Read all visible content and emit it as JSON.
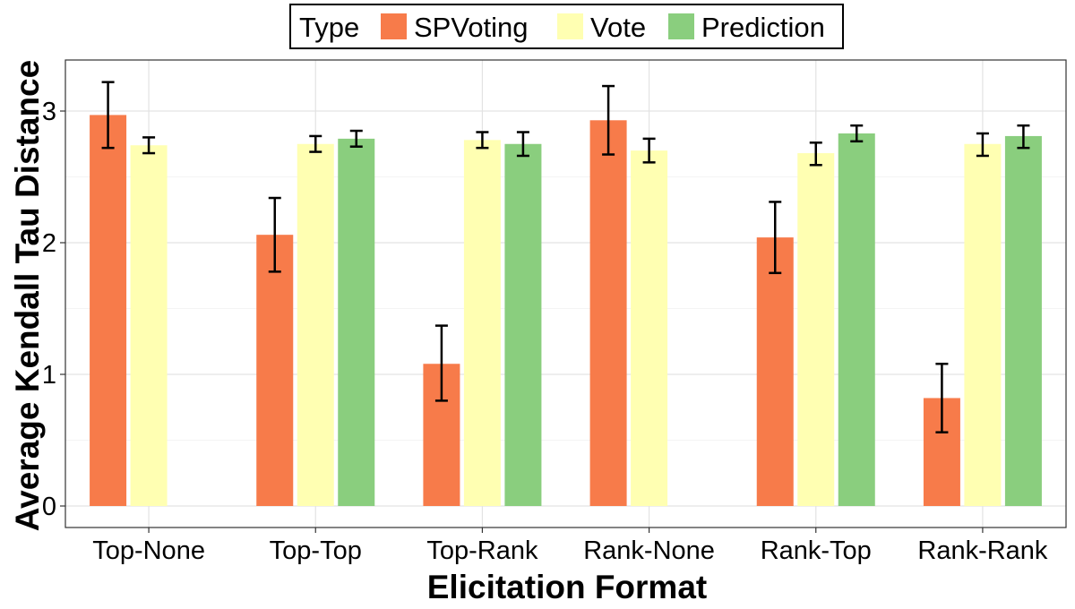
{
  "chart_data": {
    "type": "bar",
    "xlabel": "Elicitation Format",
    "ylabel": "Average Kendall Tau Distance",
    "categories": [
      "Top-None",
      "Top-Top",
      "Top-Rank",
      "Rank-None",
      "Rank-Top",
      "Rank-Rank"
    ],
    "ylim": [
      -0.15,
      3.4
    ],
    "yticks": [
      0,
      1,
      2,
      3
    ],
    "grid": true,
    "legend": {
      "title": "Type",
      "placement": "top-center"
    },
    "series": [
      {
        "name": "SPVoting",
        "color": "#F77B4A",
        "values": [
          2.97,
          2.06,
          1.08,
          2.93,
          2.04,
          0.82
        ],
        "error_low": [
          2.72,
          1.78,
          0.8,
          2.67,
          1.77,
          0.56
        ],
        "error_high": [
          3.22,
          2.34,
          1.37,
          3.19,
          2.31,
          1.08
        ]
      },
      {
        "name": "Vote",
        "color": "#FFFFB2",
        "values": [
          2.74,
          2.75,
          2.78,
          2.7,
          2.68,
          2.75
        ],
        "error_low": [
          2.68,
          2.69,
          2.72,
          2.61,
          2.59,
          2.66
        ],
        "error_high": [
          2.8,
          2.81,
          2.84,
          2.79,
          2.76,
          2.83
        ]
      },
      {
        "name": "Prediction",
        "color": "#8ACE7E",
        "values": [
          null,
          2.79,
          2.75,
          null,
          2.83,
          2.81
        ],
        "error_low": [
          null,
          2.73,
          2.66,
          null,
          2.77,
          2.72
        ],
        "error_high": [
          null,
          2.85,
          2.84,
          null,
          2.89,
          2.89
        ]
      }
    ]
  }
}
